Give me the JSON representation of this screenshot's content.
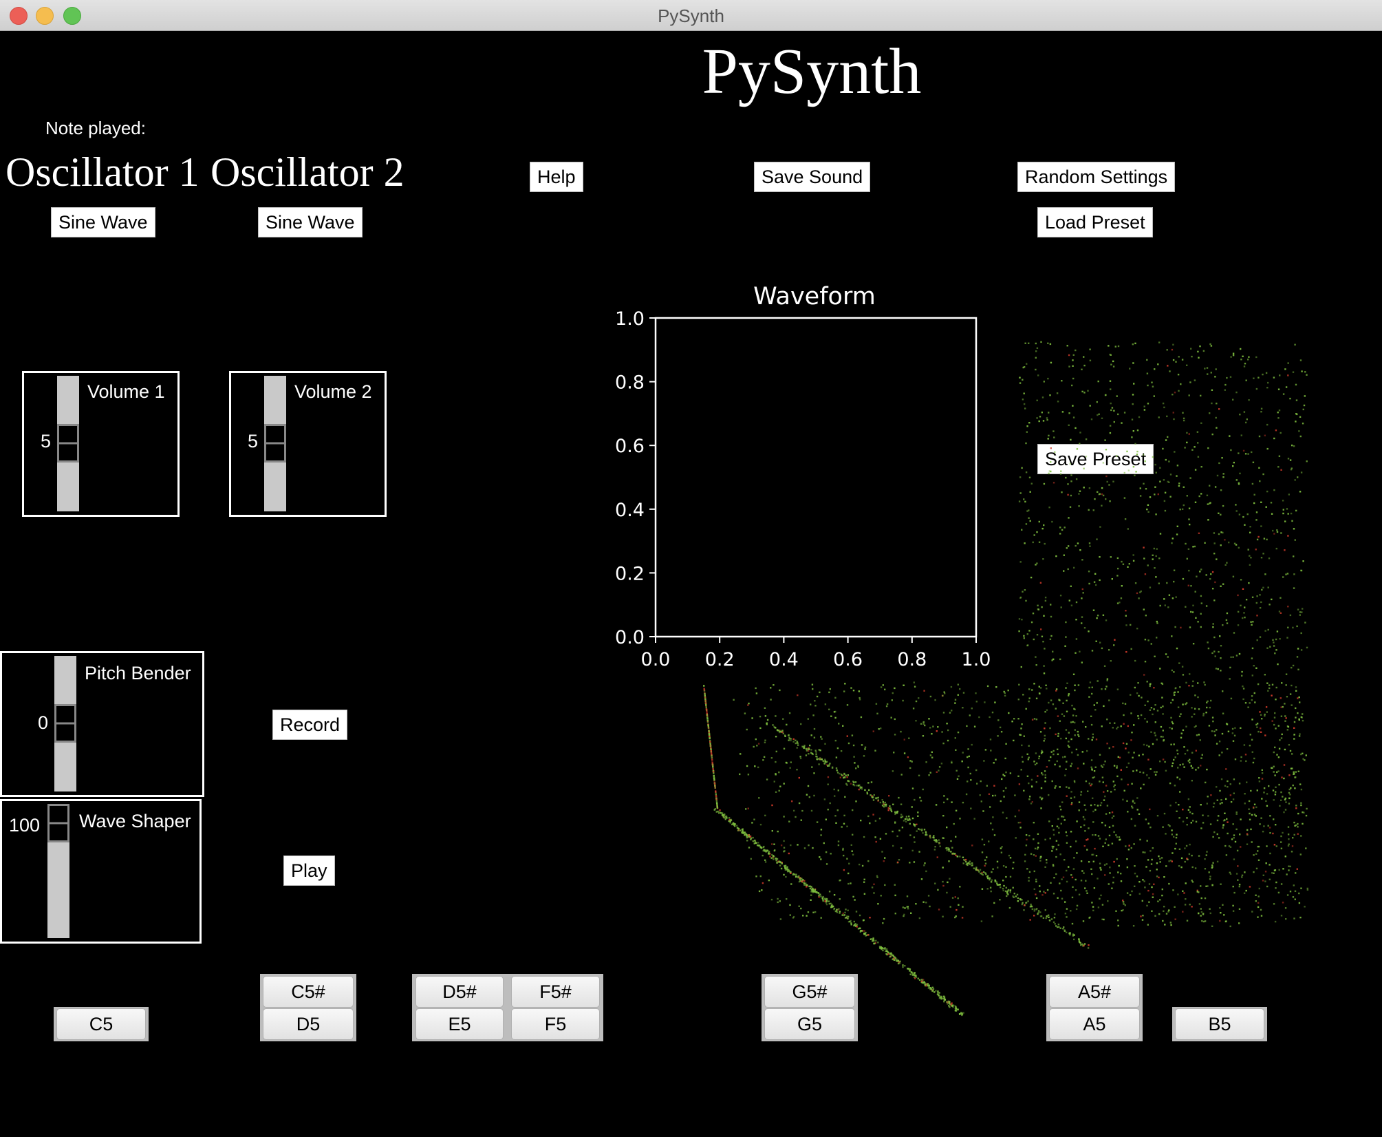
{
  "window": {
    "title": "PySynth"
  },
  "app": {
    "heading": "PySynth"
  },
  "note_played": {
    "label": "Note played:"
  },
  "oscillators": [
    {
      "title": "Oscillator 1",
      "wave_button": "Sine Wave"
    },
    {
      "title": "Oscillator 2",
      "wave_button": "Sine Wave"
    }
  ],
  "buttons": {
    "help": "Help",
    "save_sound": "Save Sound",
    "random_settings": "Random Settings",
    "load_preset": "Load Preset",
    "save_preset": "Save Preset",
    "record": "Record",
    "play": "Play"
  },
  "sliders": {
    "volume1": {
      "label": "Volume 1",
      "value": "5"
    },
    "volume2": {
      "label": "Volume 2",
      "value": "5"
    },
    "pitch_bender": {
      "label": "Pitch Bender",
      "value": "0"
    },
    "wave_shaper": {
      "label": "Wave Shaper",
      "value": "100"
    }
  },
  "keyboard": {
    "C5": "C5",
    "C5s": "C5#",
    "D5": "D5",
    "D5s": "D5#",
    "E5": "E5",
    "F5": "F5",
    "F5s": "F5#",
    "G5": "G5",
    "G5s": "G5#",
    "A5": "A5",
    "A5s": "A5#",
    "B5": "B5"
  },
  "colors": {
    "background": "#000000",
    "particles_primary": "#7fbf3f",
    "particles_secondary": "#d03a2a"
  },
  "chart_data": {
    "type": "line",
    "title": "Waveform",
    "xlabel": "",
    "ylabel": "",
    "xlim": [
      0.0,
      1.0
    ],
    "ylim": [
      0.0,
      1.0
    ],
    "xticks": [
      "0.0",
      "0.2",
      "0.4",
      "0.6",
      "0.8",
      "1.0"
    ],
    "yticks": [
      "0.0",
      "0.2",
      "0.4",
      "0.6",
      "0.8",
      "1.0"
    ],
    "series": [],
    "grid": false
  }
}
